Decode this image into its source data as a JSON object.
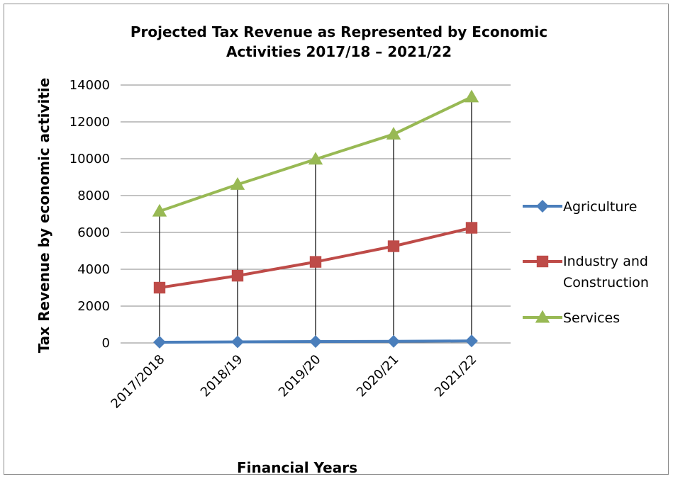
{
  "chart_data": {
    "type": "line",
    "title_lines": [
      "Projected Tax Revenue as Represented by Economic",
      "Activities 2017/18 – 2021/22"
    ],
    "xlabel": "Financial Years",
    "ylabel": "Tax Revenue by economic activitie",
    "categories": [
      "2017/2018",
      "2018/19",
      "2019/20",
      "2020/21",
      "2021/22"
    ],
    "ylim": [
      0,
      14000
    ],
    "yticks": [
      "0",
      "2000",
      "4000",
      "6000",
      "8000",
      "10000",
      "12000",
      "14000"
    ],
    "grid": "horizontal",
    "drop_lines": true,
    "legend_position": "right",
    "series": [
      {
        "name": "Agriculture",
        "values": [
          40,
          60,
          75,
          85,
          110
        ],
        "color": "#4a7ebb",
        "marker": "diamond"
      },
      {
        "name": "Industry and Construction",
        "name_lines": [
          "Industry and",
          "Construction"
        ],
        "values": [
          3000,
          3650,
          4400,
          5250,
          6250
        ],
        "color": "#be4b48",
        "marker": "square"
      },
      {
        "name": "Services",
        "values": [
          7150,
          8600,
          9970,
          11330,
          13350
        ],
        "color": "#98b954",
        "marker": "triangle"
      }
    ]
  }
}
